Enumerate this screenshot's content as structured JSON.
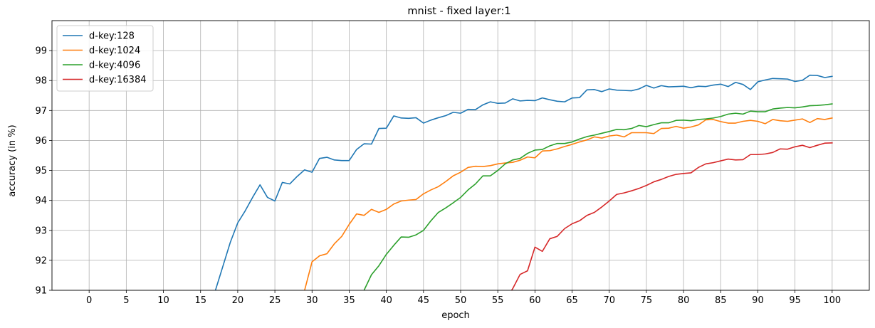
{
  "chart_data": {
    "type": "line",
    "title": "mnist - fixed layer:1",
    "xlabel": "epoch",
    "ylabel": "accuracy (in %)",
    "xlim": [
      -5,
      105
    ],
    "ylim": [
      91,
      100
    ],
    "xticks": [
      0,
      5,
      10,
      15,
      20,
      25,
      30,
      35,
      40,
      45,
      50,
      55,
      60,
      65,
      70,
      75,
      80,
      85,
      90,
      95,
      100
    ],
    "yticks": [
      91,
      92,
      93,
      94,
      95,
      96,
      97,
      98,
      99
    ],
    "grid": true,
    "legend_position": "top-left",
    "series": [
      {
        "name": "d-key:128",
        "color": "#1f77b4",
        "x": [
          16,
          17,
          18,
          19,
          20,
          21,
          22,
          23,
          24,
          25,
          26,
          27,
          28,
          29,
          30,
          31,
          32,
          33,
          34,
          35,
          36,
          37,
          38,
          39,
          40,
          41,
          42,
          43,
          44,
          45,
          46,
          47,
          48,
          49,
          50,
          51,
          52,
          53,
          54,
          55,
          56,
          57,
          58,
          59,
          60,
          61,
          62,
          63,
          64,
          65,
          66,
          67,
          68,
          69,
          70,
          71,
          72,
          73,
          74,
          75,
          76,
          77,
          78,
          79,
          80,
          81,
          82,
          83,
          84,
          85,
          86,
          87,
          88,
          89,
          90,
          91,
          92,
          93,
          94,
          95,
          96,
          97,
          98,
          99,
          100
        ],
        "y": [
          90.5,
          91.0,
          91.8,
          92.6,
          93.25,
          93.65,
          94.1,
          94.52,
          94.1,
          93.98,
          94.6,
          94.55,
          94.8,
          95.02,
          94.94,
          95.4,
          95.44,
          95.35,
          95.33,
          95.33,
          95.7,
          95.89,
          95.88,
          96.4,
          96.41,
          96.82,
          96.75,
          96.74,
          96.76,
          96.58,
          96.68,
          96.76,
          96.83,
          96.94,
          96.91,
          97.04,
          97.03,
          97.19,
          97.29,
          97.24,
          97.25,
          97.39,
          97.32,
          97.34,
          97.33,
          97.42,
          97.36,
          97.31,
          97.29,
          97.42,
          97.43,
          97.69,
          97.7,
          97.63,
          97.72,
          97.68,
          97.67,
          97.66,
          97.72,
          97.84,
          97.75,
          97.83,
          97.79,
          97.8,
          97.81,
          97.76,
          97.81,
          97.8,
          97.85,
          97.88,
          97.8,
          97.94,
          97.87,
          97.7,
          97.96,
          98.02,
          98.07,
          98.06,
          98.05,
          97.97,
          98.01,
          98.18,
          98.17,
          98.1,
          98.14
        ]
      },
      {
        "name": "d-key:1024",
        "color": "#ff7f0e",
        "x": [
          28,
          29,
          30,
          31,
          32,
          33,
          34,
          35,
          36,
          37,
          38,
          39,
          40,
          41,
          42,
          43,
          44,
          45,
          46,
          47,
          48,
          49,
          50,
          51,
          52,
          53,
          54,
          55,
          56,
          57,
          58,
          59,
          60,
          61,
          62,
          63,
          64,
          65,
          66,
          67,
          68,
          69,
          70,
          71,
          72,
          73,
          74,
          75,
          76,
          77,
          78,
          79,
          80,
          81,
          82,
          83,
          84,
          85,
          86,
          87,
          88,
          89,
          90,
          91,
          92,
          93,
          94,
          95,
          96,
          97,
          98,
          99,
          100
        ],
        "y": [
          90.2,
          91.0,
          91.95,
          92.15,
          92.22,
          92.55,
          92.8,
          93.2,
          93.55,
          93.5,
          93.7,
          93.6,
          93.7,
          93.88,
          93.98,
          94.01,
          94.03,
          94.22,
          94.35,
          94.46,
          94.63,
          94.82,
          94.94,
          95.1,
          95.14,
          95.13,
          95.16,
          95.22,
          95.25,
          95.27,
          95.34,
          95.45,
          95.42,
          95.65,
          95.66,
          95.72,
          95.8,
          95.87,
          95.95,
          96.02,
          96.12,
          96.08,
          96.15,
          96.18,
          96.12,
          96.26,
          96.26,
          96.26,
          96.23,
          96.4,
          96.41,
          96.47,
          96.41,
          96.45,
          96.52,
          96.69,
          96.7,
          96.63,
          96.58,
          96.58,
          96.64,
          96.67,
          96.64,
          96.56,
          96.7,
          96.66,
          96.64,
          96.68,
          96.72,
          96.6,
          96.73,
          96.7,
          96.75
        ]
      },
      {
        "name": "d-key:4096",
        "color": "#2ca02c",
        "x": [
          36,
          37,
          38,
          39,
          40,
          41,
          42,
          43,
          44,
          45,
          46,
          47,
          48,
          49,
          50,
          51,
          52,
          53,
          54,
          55,
          56,
          57,
          58,
          59,
          60,
          61,
          62,
          63,
          64,
          65,
          66,
          67,
          68,
          69,
          70,
          71,
          72,
          73,
          74,
          75,
          76,
          77,
          78,
          79,
          80,
          81,
          82,
          83,
          84,
          85,
          86,
          87,
          88,
          89,
          90,
          91,
          92,
          93,
          94,
          95,
          96,
          97,
          98,
          99,
          100
        ],
        "y": [
          90.4,
          91.0,
          91.52,
          91.82,
          92.2,
          92.5,
          92.78,
          92.77,
          92.85,
          93.0,
          93.32,
          93.6,
          93.75,
          93.92,
          94.1,
          94.35,
          94.55,
          94.82,
          94.82,
          95.0,
          95.22,
          95.35,
          95.4,
          95.57,
          95.68,
          95.7,
          95.82,
          95.9,
          95.9,
          95.95,
          96.05,
          96.13,
          96.18,
          96.24,
          96.3,
          96.37,
          96.36,
          96.4,
          96.5,
          96.46,
          96.53,
          96.59,
          96.59,
          96.67,
          96.68,
          96.66,
          96.7,
          96.72,
          96.75,
          96.8,
          96.88,
          96.91,
          96.88,
          96.98,
          96.96,
          96.96,
          97.05,
          97.08,
          97.1,
          97.09,
          97.12,
          97.16,
          97.17,
          97.19,
          97.22
        ]
      },
      {
        "name": "d-key:16384",
        "color": "#d62728",
        "x": [
          56,
          57,
          58,
          59,
          60,
          61,
          62,
          63,
          64,
          65,
          66,
          67,
          68,
          69,
          70,
          71,
          72,
          73,
          74,
          75,
          76,
          77,
          78,
          79,
          80,
          81,
          82,
          83,
          84,
          85,
          86,
          87,
          88,
          89,
          90,
          91,
          92,
          93,
          94,
          95,
          96,
          97,
          98,
          99,
          100
        ],
        "y": [
          90.7,
          91.05,
          91.53,
          91.65,
          92.44,
          92.3,
          92.72,
          92.8,
          93.06,
          93.22,
          93.32,
          93.5,
          93.6,
          93.78,
          93.98,
          94.2,
          94.25,
          94.32,
          94.4,
          94.5,
          94.62,
          94.7,
          94.8,
          94.87,
          94.9,
          94.92,
          95.1,
          95.22,
          95.26,
          95.32,
          95.38,
          95.35,
          95.36,
          95.53,
          95.53,
          95.55,
          95.6,
          95.72,
          95.71,
          95.79,
          95.84,
          95.76,
          95.84,
          95.91,
          95.92
        ]
      }
    ]
  }
}
